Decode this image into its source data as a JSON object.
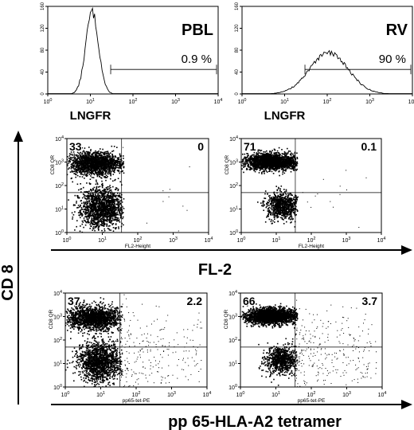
{
  "figure": {
    "y_axis_title": "CD 8",
    "fl2_axis_title": "FL-2",
    "tetramer_axis_title": "pp 65-HLA-A2 tetramer"
  },
  "chart_data": [
    {
      "type": "area",
      "panel": "histogram",
      "title": "PBL",
      "xlabel": "LNGFR",
      "ylabel": "",
      "x_log": true,
      "xlim": [
        1,
        10000
      ],
      "ylim": [
        0,
        160
      ],
      "x_ticks": [
        "10^0",
        "10^1",
        "10^2",
        "10^3",
        "10^4"
      ],
      "y_ticks": [
        "0",
        "40",
        "80",
        "120",
        "160"
      ],
      "gate": {
        "x_start": 30,
        "x_end": 10000,
        "label": "0.9 %"
      },
      "peak": {
        "x": 11,
        "y": 150,
        "sigma_log": 0.15
      }
    },
    {
      "type": "area",
      "panel": "histogram",
      "title": "RV",
      "xlabel": "LNGFR",
      "ylabel": "",
      "x_log": true,
      "xlim": [
        1,
        10000
      ],
      "ylim": [
        0,
        160
      ],
      "x_ticks": [
        "10^0",
        "10^1",
        "10^2",
        "10^3",
        "10^4"
      ],
      "y_ticks": [
        "0",
        "40",
        "80",
        "120",
        "160"
      ],
      "gate": {
        "x_start": 30,
        "x_end": 10000,
        "label": "90 %"
      },
      "peak": {
        "x": 110,
        "y": 75,
        "sigma_log": 0.45
      }
    },
    {
      "type": "scatter",
      "panel": "dotplot",
      "xlabel": "FL2-Height",
      "ylabel": "CD8 QR",
      "x_log": true,
      "y_log": true,
      "xlim": [
        1,
        10000
      ],
      "ylim": [
        1,
        10000
      ],
      "x_ticks": [
        "10^0",
        "10^1",
        "10^2",
        "10^3",
        "10^4"
      ],
      "y_ticks": [
        "10^0",
        "10^1",
        "10^2",
        "10^3",
        "10^4"
      ],
      "quadrant_x": 35,
      "quadrant_y": 50,
      "quadrants": {
        "upper_left": "33",
        "upper_right": "0"
      },
      "clusters": [
        {
          "x": 6,
          "y": 900,
          "sx": 0.38,
          "sy": 0.25,
          "n": 1700
        },
        {
          "x": 9,
          "y": 12,
          "sx": 0.3,
          "sy": 0.42,
          "n": 1500
        }
      ],
      "sparse_right": 10
    },
    {
      "type": "scatter",
      "panel": "dotplot",
      "xlabel": "FL2-Height",
      "ylabel": "CD8 QR",
      "x_log": true,
      "y_log": true,
      "xlim": [
        1,
        10000
      ],
      "ylim": [
        1,
        10000
      ],
      "x_ticks": [
        "10^0",
        "10^1",
        "10^2",
        "10^3",
        "10^4"
      ],
      "y_ticks": [
        "10^0",
        "10^1",
        "10^2",
        "10^3",
        "10^4"
      ],
      "quadrant_x": 35,
      "quadrant_y": 50,
      "quadrants": {
        "upper_left": "71",
        "upper_right": "0.1"
      },
      "clusters": [
        {
          "x": 7,
          "y": 1100,
          "sx": 0.36,
          "sy": 0.17,
          "n": 2200
        },
        {
          "x": 14,
          "y": 15,
          "sx": 0.22,
          "sy": 0.28,
          "n": 800
        }
      ],
      "sparse_right": 18
    },
    {
      "type": "scatter",
      "panel": "dotplot",
      "xlabel": "pp65-tet-PE",
      "ylabel": "CD8 QR",
      "x_log": true,
      "y_log": true,
      "xlim": [
        1,
        10000
      ],
      "ylim": [
        1,
        10000
      ],
      "x_ticks": [
        "10^0",
        "10^1",
        "10^2",
        "10^3",
        "10^4"
      ],
      "y_ticks": [
        "10^0",
        "10^1",
        "10^2",
        "10^3",
        "10^4"
      ],
      "quadrant_x": 35,
      "quadrant_y": 50,
      "quadrants": {
        "upper_left": "37",
        "upper_right": "2.2"
      },
      "clusters": [
        {
          "x": 6,
          "y": 900,
          "sx": 0.38,
          "sy": 0.25,
          "n": 1700
        },
        {
          "x": 9,
          "y": 12,
          "sx": 0.3,
          "sy": 0.42,
          "n": 1500
        }
      ],
      "sparse_right": 260
    },
    {
      "type": "scatter",
      "panel": "dotplot",
      "xlabel": "pp65-tet-PE",
      "ylabel": "CD8 QR",
      "x_log": true,
      "y_log": true,
      "xlim": [
        1,
        10000
      ],
      "ylim": [
        1,
        10000
      ],
      "x_ticks": [
        "10^0",
        "10^1",
        "10^2",
        "10^3",
        "10^4"
      ],
      "y_ticks": [
        "10^0",
        "10^1",
        "10^2",
        "10^3",
        "10^4"
      ],
      "quadrant_x": 35,
      "quadrant_y": 50,
      "quadrants": {
        "upper_left": "66",
        "upper_right": "3.7"
      },
      "clusters": [
        {
          "x": 7,
          "y": 1100,
          "sx": 0.36,
          "sy": 0.17,
          "n": 2200
        },
        {
          "x": 14,
          "y": 15,
          "sx": 0.22,
          "sy": 0.28,
          "n": 800
        }
      ],
      "sparse_right": 320
    }
  ]
}
